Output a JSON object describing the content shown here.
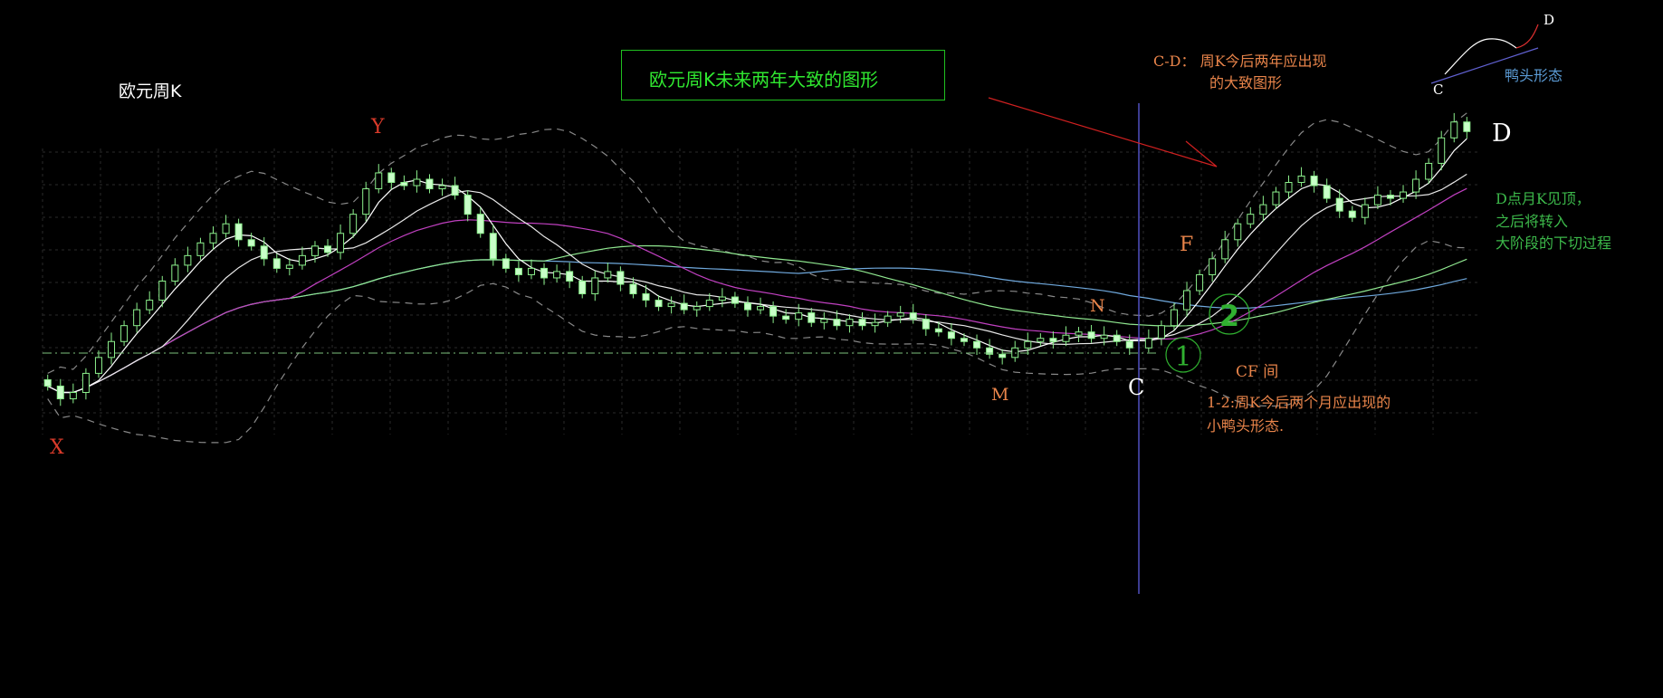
{
  "chart_data": {
    "type": "candlestick",
    "title": "欧元周K",
    "headline": "欧元周K未来两年大致的图形",
    "x_axis_labels": [],
    "y_axis_labels": [],
    "grid": true,
    "price_relative_unlabeled": true,
    "historical_closes": [
      12,
      8,
      10,
      16,
      21,
      26,
      31,
      36,
      39,
      45,
      50,
      53,
      57,
      60,
      63,
      58,
      56,
      52,
      49,
      50,
      53,
      56,
      54,
      60,
      66,
      74,
      79,
      76,
      75,
      77,
      74,
      75,
      72,
      66,
      60,
      52,
      49,
      47,
      49,
      46,
      48,
      45,
      41,
      46,
      48,
      44,
      41,
      39,
      37,
      38,
      36,
      37,
      39,
      40,
      38,
      36,
      37,
      34,
      33,
      35,
      32,
      33,
      31,
      33,
      31,
      32,
      34,
      35,
      33,
      30,
      29,
      27,
      26,
      24,
      22,
      21,
      24,
      26,
      27,
      26,
      28,
      29,
      27,
      28,
      26,
      24
    ],
    "projected_closes": [
      27,
      31,
      36,
      42,
      47,
      52,
      58,
      63,
      66,
      69,
      73,
      76,
      78,
      75,
      71,
      67,
      65,
      69,
      72,
      71,
      73,
      77,
      82,
      90,
      95,
      92
    ],
    "indicators": [
      "MA5",
      "MA10",
      "MA20",
      "MA40",
      "MA60",
      "Bollinger Bands"
    ],
    "colors": {
      "candle": "#8cf08c",
      "ma5": "#ffffff",
      "ma10": "#e8e8e8",
      "ma20": "#c040c0",
      "ma40": "#90e890",
      "ma60": "#6fa8dc",
      "bollinger": "#888888",
      "divider": "#5050c0",
      "arrow": "#d02020"
    },
    "annotations": {
      "x": "X",
      "y": "Y",
      "m": "M",
      "n": "N",
      "c": "C",
      "f": "F",
      "d": "D",
      "circle_1": "1",
      "circle_2": "2",
      "cf": "CF 间",
      "cd_line1": "C-D： 周K今后两年应出现",
      "cd_line2": "的大致图形",
      "d_top_line1": "D点月K见顶，",
      "d_top_line2": "之后将转入",
      "d_top_line3": "大阶段的下切过程",
      "one_two_line1": "1-2:周K今后两个月应出现的",
      "one_two_line2": "小鸭头形态.",
      "inset_c": "C",
      "inset_d": "D",
      "inset_label": "鸭头形态"
    }
  }
}
